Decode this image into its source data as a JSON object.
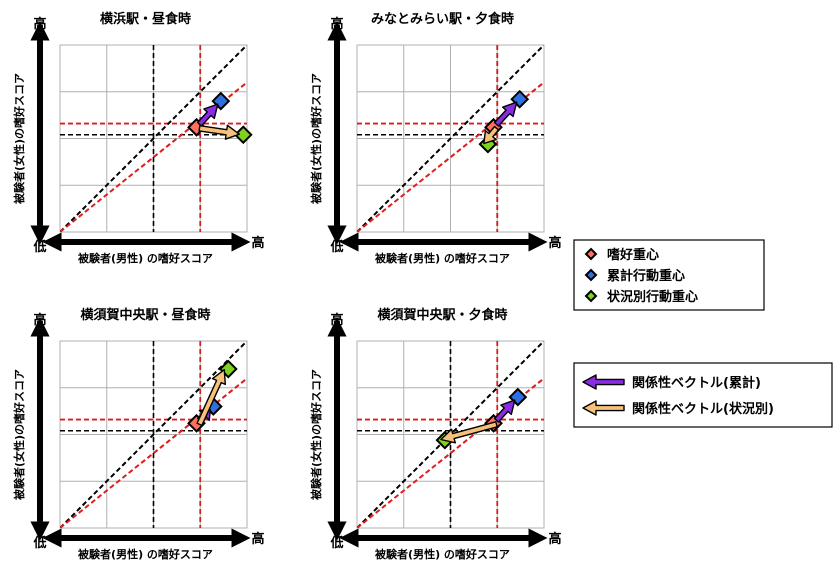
{
  "colors": {
    "preference": "#ff6f5c",
    "cumulative": "#2f6fe0",
    "situational": "#7dd21f",
    "vector_cumulative": "#8a2be2",
    "vector_situational": "#f6c27a",
    "grid": "#b0b0b0",
    "female_pref_line": "#e01b1b",
    "male_pref_line": "#e01b1b",
    "mid_line": "#000000",
    "diagonal_red": "#e01b1b",
    "diagonal_black": "#000000"
  },
  "legend_markers": {
    "items": [
      {
        "label": "嗜好重心",
        "color_key": "preference"
      },
      {
        "label": "累計行動重心",
        "color_key": "cumulative"
      },
      {
        "label": "状況別行動重心",
        "color_key": "situational"
      }
    ]
  },
  "legend_vectors": {
    "items": [
      {
        "label": "関係性ベクトル(累計)",
        "color_key": "vector_cumulative"
      },
      {
        "label": "関係性ベクトル(状況別)",
        "color_key": "vector_situational"
      }
    ]
  },
  "axis_text": {
    "xlabel": "被験者(男性) の嗜好スコア",
    "ylabel": "被験者(女性)の嗜好スコア",
    "low": "低",
    "high": "高"
  },
  "chart_data": [
    {
      "type": "scatter",
      "title": "横浜駅・昼食時",
      "xlim": [
        0,
        1
      ],
      "ylim": [
        0,
        1
      ],
      "pref_x": 0.75,
      "pref_y": 0.58,
      "mid_x": 0.5,
      "mid_y": 0.52,
      "preference": [
        0.73,
        0.56
      ],
      "cumulative": [
        0.86,
        0.7
      ],
      "situational": [
        0.98,
        0.52
      ]
    },
    {
      "type": "scatter",
      "title": "みなとみらい駅・夕食時",
      "xlim": [
        0,
        1
      ],
      "ylim": [
        0,
        1
      ],
      "pref_x": 0.75,
      "pref_y": 0.58,
      "mid_x": 0.75,
      "mid_y": 0.52,
      "preference": [
        0.73,
        0.56
      ],
      "cumulative": [
        0.87,
        0.71
      ],
      "situational": [
        0.7,
        0.47
      ]
    },
    {
      "type": "scatter",
      "title": "横須賀中央駅・昼食時",
      "xlim": [
        0,
        1
      ],
      "ylim": [
        0,
        1
      ],
      "pref_x": 0.75,
      "pref_y": 0.58,
      "mid_x": 0.5,
      "mid_y": 0.52,
      "preference": [
        0.73,
        0.56
      ],
      "cumulative": [
        0.82,
        0.65
      ],
      "situational": [
        0.9,
        0.85
      ]
    },
    {
      "type": "scatter",
      "title": "横須賀中央駅・夕食時",
      "xlim": [
        0,
        1
      ],
      "ylim": [
        0,
        1
      ],
      "pref_x": 0.75,
      "pref_y": 0.58,
      "mid_x": 0.5,
      "mid_y": 0.52,
      "preference": [
        0.73,
        0.56
      ],
      "cumulative": [
        0.86,
        0.7
      ],
      "situational": [
        0.47,
        0.47
      ]
    }
  ]
}
